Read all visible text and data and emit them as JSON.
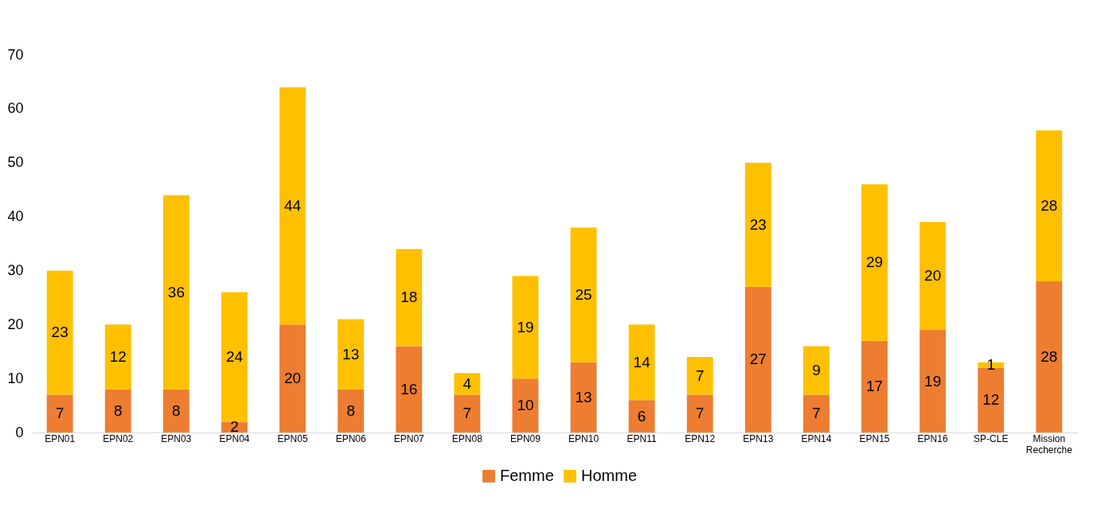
{
  "chart_data": {
    "type": "bar",
    "stacked": true,
    "categories": [
      "EPN01",
      "EPN02",
      "EPN03",
      "EPN04",
      "EPN05",
      "EPN06",
      "EPN07",
      "EPN08",
      "EPN09",
      "EPN10",
      "EPN11",
      "EPN12",
      "EPN13",
      "EPN14",
      "EPN15",
      "EPN16",
      "SP-CLE",
      "Mission Recherche"
    ],
    "series": [
      {
        "name": "Femme",
        "color": "#ed7d31",
        "values": [
          7,
          8,
          8,
          2,
          20,
          8,
          16,
          7,
          10,
          13,
          6,
          7,
          27,
          7,
          17,
          19,
          12,
          28
        ]
      },
      {
        "name": "Homme",
        "color": "#ffc000",
        "values": [
          23,
          12,
          36,
          24,
          44,
          13,
          18,
          4,
          19,
          25,
          14,
          7,
          23,
          9,
          29,
          20,
          1,
          28
        ]
      }
    ],
    "ylim": [
      0,
      70
    ],
    "yticks": [
      0,
      10,
      20,
      30,
      40,
      50,
      60,
      70
    ],
    "grid": false,
    "legend": "bottom",
    "data_labels": true
  }
}
